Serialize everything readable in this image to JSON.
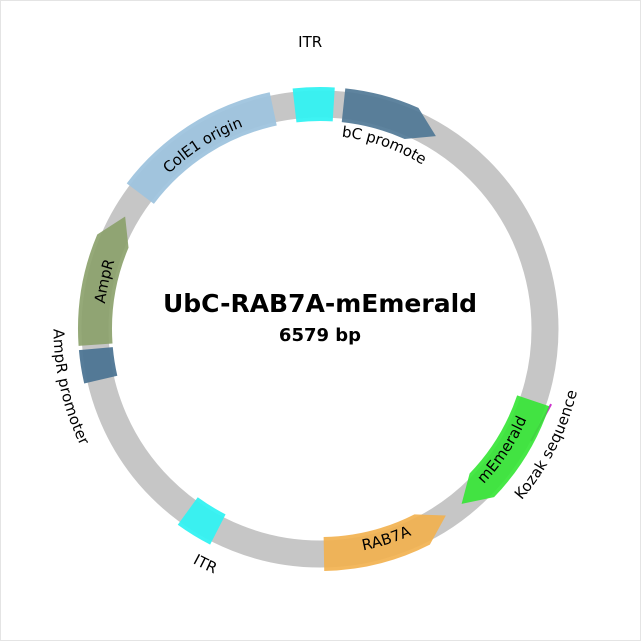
{
  "plasmid": {
    "name": "UbC-RAB7A-mEmerald",
    "size_label": "6579 bp",
    "length_bp": 6579
  },
  "features": [
    {
      "id": "itr-top",
      "label": "ITR",
      "type": "repeat",
      "color": "#33f2f2",
      "start": 6421,
      "end": 6579,
      "strand": 0
    },
    {
      "id": "ubc",
      "label": "UbC promoter",
      "type": "promoter",
      "color": "#4d7593",
      "start": 31,
      "end": 605,
      "strand": 1
    },
    {
      "id": "kozak",
      "label": "Kozak sequence",
      "type": "regulatory",
      "color": "#cc33cc",
      "start": 1863,
      "end": 1873,
      "strand": 0
    },
    {
      "id": "memerald",
      "label": "mEmerald",
      "type": "cds",
      "color": "#33e633",
      "start": 1873,
      "end": 2590,
      "strand": 1
    },
    {
      "id": "rab7a",
      "label": "RAB7A",
      "type": "cds",
      "color": "#f2b04d",
      "start": 2600,
      "end": 3200,
      "strand": -1
    },
    {
      "id": "itr-bottom",
      "label": "ITR",
      "type": "repeat",
      "color": "#33f2f2",
      "start": 3620,
      "end": 3760,
      "strand": 0
    },
    {
      "id": "ampr-promoter",
      "label": "AmpR promoter",
      "type": "promoter",
      "color": "#4d7593",
      "start": 4560,
      "end": 4665,
      "strand": 0
    },
    {
      "id": "ampr",
      "label": "AmpR",
      "type": "cds",
      "color": "#8aa069",
      "start": 4665,
      "end": 5525,
      "strand": 1
    },
    {
      "id": "cole1",
      "label": "ColE1 origin",
      "type": "origin",
      "color": "#9fc4de",
      "start": 5700,
      "end": 6300,
      "strand": 0
    }
  ]
}
